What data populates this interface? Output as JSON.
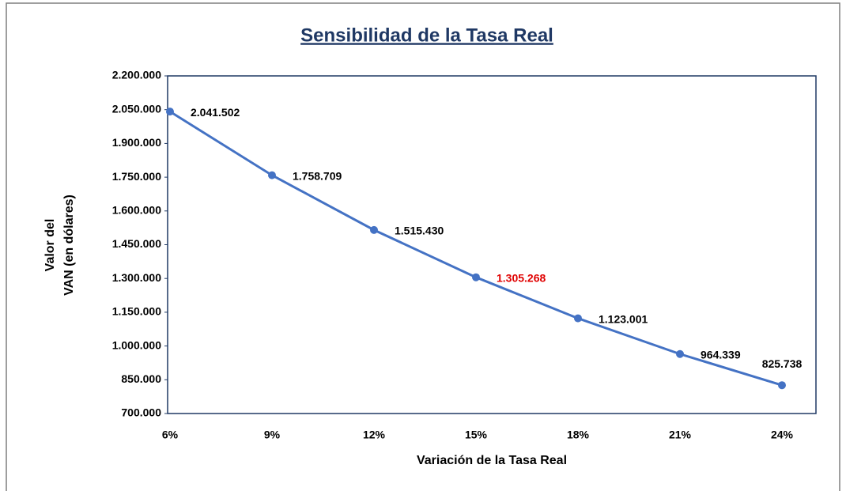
{
  "chart_data": {
    "type": "line",
    "title": "Sensibilidad de la Tasa Real",
    "xlabel": "Variación de la Tasa Real",
    "ylabel": [
      "Valor del",
      "VAN (en dólares)"
    ],
    "categories": [
      "6%",
      "9%",
      "12%",
      "15%",
      "18%",
      "21%",
      "24%"
    ],
    "series": [
      {
        "name": "VAN",
        "color": "#4472c4",
        "values": [
          2041502,
          1758709,
          1515430,
          1305268,
          1123001,
          964339,
          825738
        ],
        "value_labels": [
          "2.041.502",
          "1.758.709",
          "1.515.430",
          "1.305.268",
          "1.123.001",
          "964.339",
          "825.738"
        ],
        "value_label_colors": [
          "#000000",
          "#000000",
          "#000000",
          "#e00000",
          "#000000",
          "#000000",
          "#000000"
        ]
      }
    ],
    "ylim": [
      700000,
      2200000
    ],
    "yticks": [
      {
        "value": 700000,
        "label": "700.000"
      },
      {
        "value": 850000,
        "label": "850.000"
      },
      {
        "value": 1000000,
        "label": "1.000.000"
      },
      {
        "value": 1150000,
        "label": "1.150.000"
      },
      {
        "value": 1300000,
        "label": "1.300.000"
      },
      {
        "value": 1450000,
        "label": "1.450.000"
      },
      {
        "value": 1600000,
        "label": "1.600.000"
      },
      {
        "value": 1750000,
        "label": "1.750.000"
      },
      {
        "value": 1900000,
        "label": "1.900.000"
      },
      {
        "value": 2050000,
        "label": "2.050.000"
      },
      {
        "value": 2200000,
        "label": "2.200.000"
      }
    ],
    "grid": false
  }
}
